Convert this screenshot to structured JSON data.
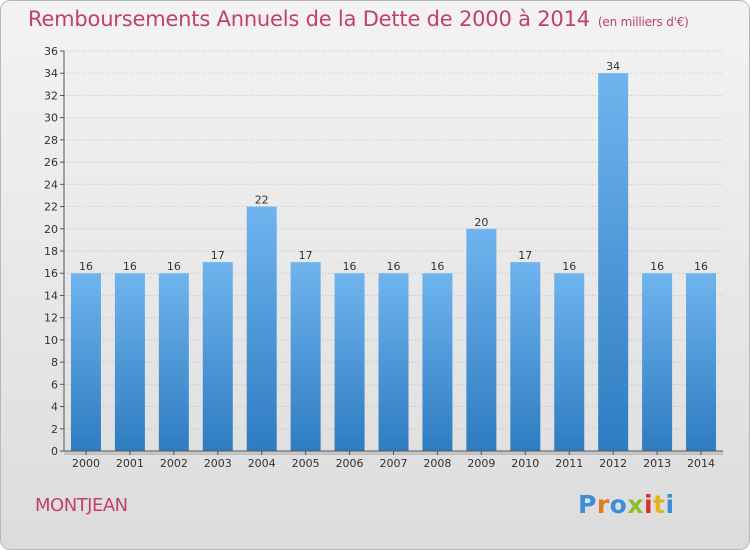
{
  "header": {
    "title": "Remboursements Annuels de la Dette de 2000 à 2014",
    "subtitle": "(en milliers d'€)"
  },
  "commune": "MONTJEAN",
  "logo": {
    "text": "Proxiti",
    "colors": [
      "#3a8fd6",
      "#e07a1f",
      "#3a8fd6",
      "#8cbd2c",
      "#d9312b",
      "#e2b520",
      "#3a8fd6"
    ]
  },
  "colors": {
    "title": "#c2406a",
    "bar_top": "#6fb4ee",
    "bar_bottom": "#2e7cc1"
  },
  "chart_data": {
    "type": "bar",
    "title": "Remboursements Annuels de la Dette de 2000 à 2014",
    "subtitle": "(en milliers d'€)",
    "categories": [
      "2000",
      "2001",
      "2002",
      "2003",
      "2004",
      "2005",
      "2006",
      "2007",
      "2008",
      "2009",
      "2010",
      "2011",
      "2012",
      "2013",
      "2014"
    ],
    "values": [
      16,
      16,
      16,
      17,
      22,
      17,
      16,
      16,
      16,
      20,
      17,
      16,
      34,
      16,
      16
    ],
    "ylim": [
      0,
      36
    ],
    "yticks": [
      0,
      2,
      4,
      6,
      8,
      10,
      12,
      14,
      16,
      18,
      20,
      22,
      24,
      26,
      28,
      30,
      32,
      34,
      36
    ],
    "grid": true,
    "data_labels": true
  }
}
